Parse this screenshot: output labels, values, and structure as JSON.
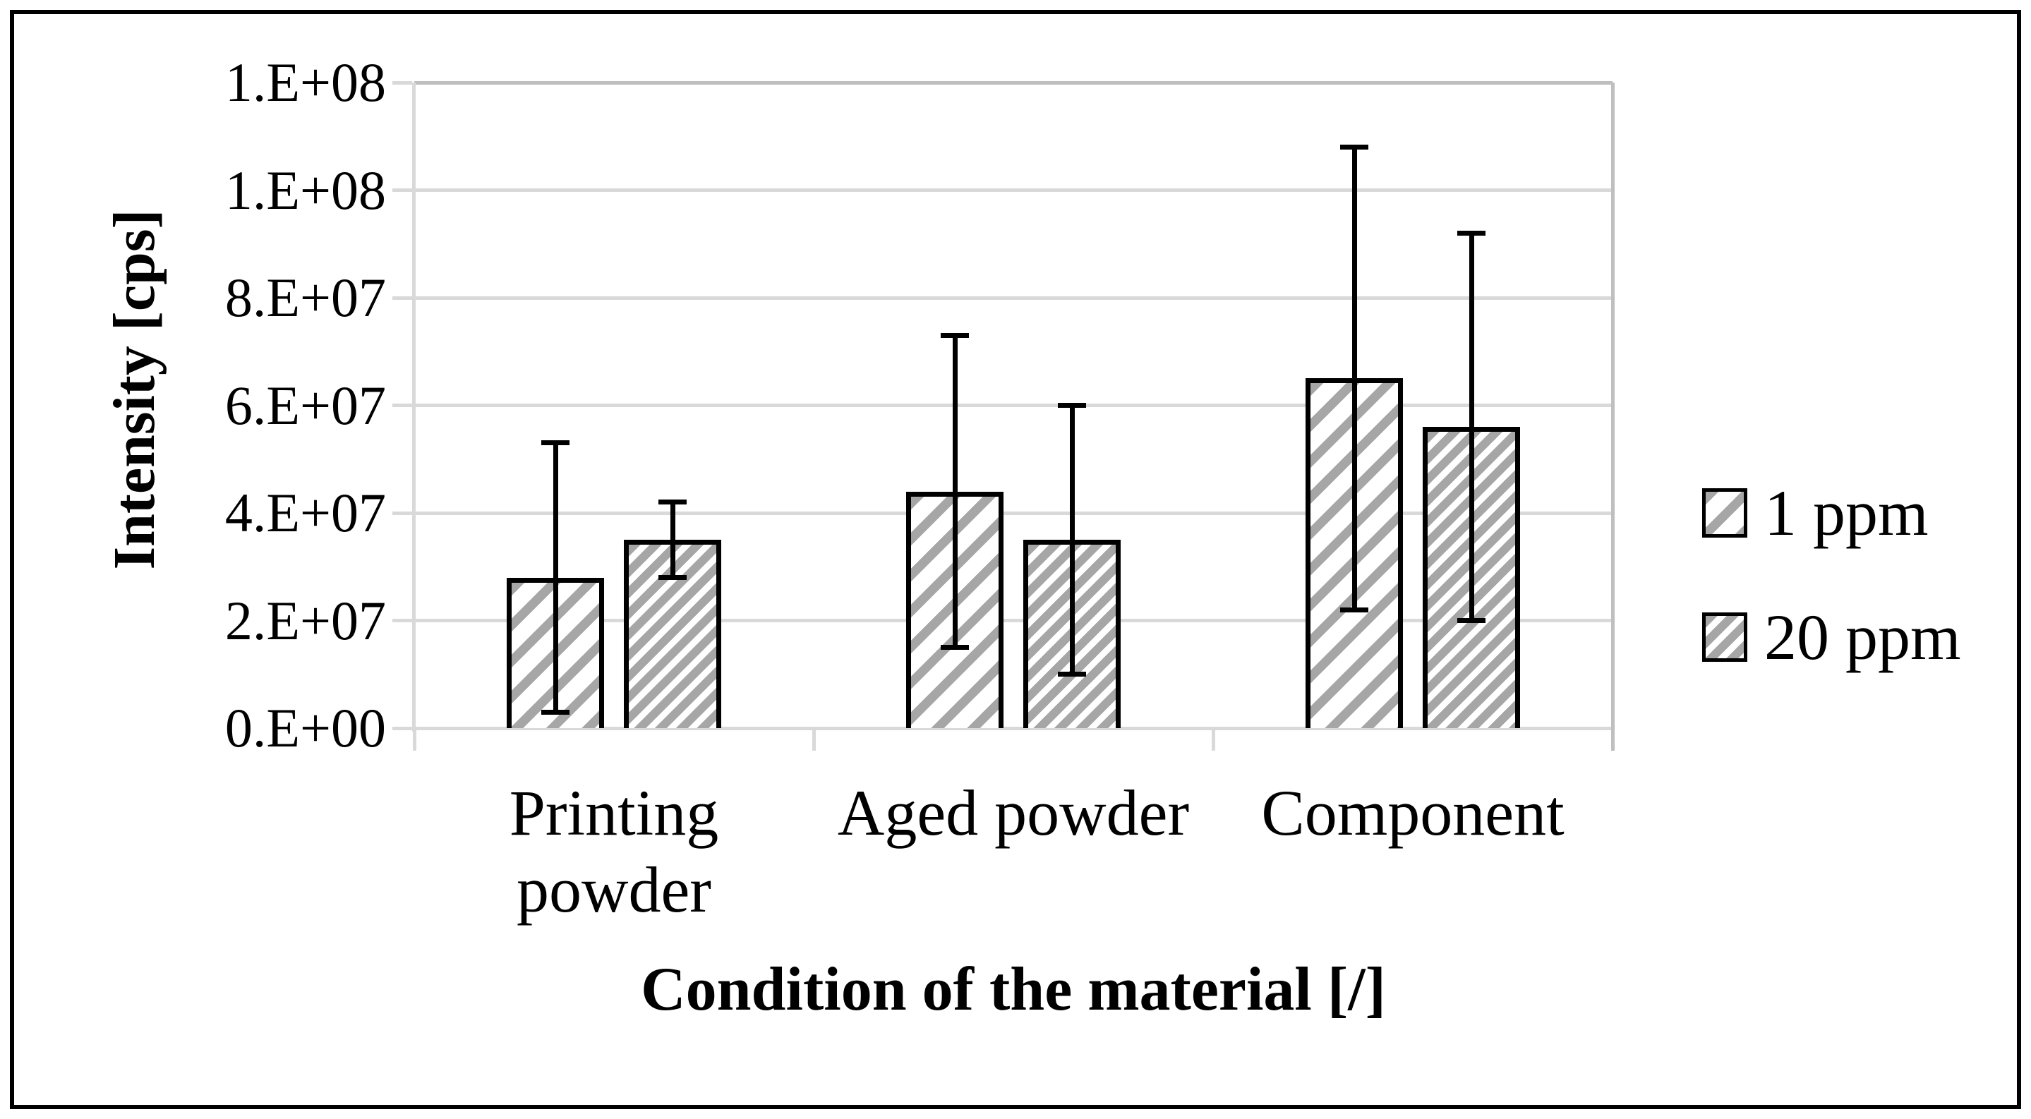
{
  "chart_data": {
    "type": "bar",
    "title": "",
    "categories": [
      [
        "Printing",
        "powder"
      ],
      [
        "Aged powder"
      ],
      [
        "Component"
      ]
    ],
    "series": [
      {
        "name": "1 ppm",
        "pattern": "wide-diagonal-hatch",
        "values": [
          28000000,
          44000000,
          65000000
        ],
        "errors": [
          25000000,
          29000000,
          43000000
        ]
      },
      {
        "name": "20 ppm",
        "pattern": "dense-diagonal-hatch",
        "values": [
          35000000,
          35000000,
          56000000
        ],
        "errors": [
          7000000,
          25000000,
          36000000
        ]
      }
    ],
    "xlabel": "Condition of the material [/]",
    "ylabel": "Intensity [cps]",
    "ylim": [
      0,
      120000000
    ],
    "ytick_step": 20000000,
    "ytick_labels": [
      "0.E+00",
      "2.E+07",
      "4.E+07",
      "6.E+07",
      "8.E+07",
      "1.E+08",
      "1.E+08"
    ],
    "grid": "horizontal-gridlines",
    "legend_position": "right"
  },
  "colors": {
    "hatch_stripe": "#a6a6a6",
    "gridline": "#d9d9d9",
    "plot_border": "#bfbfbf",
    "bar_border": "#000000",
    "error_bar": "#000000",
    "text": "#000000",
    "frame": "#000000",
    "background": "#ffffff"
  }
}
